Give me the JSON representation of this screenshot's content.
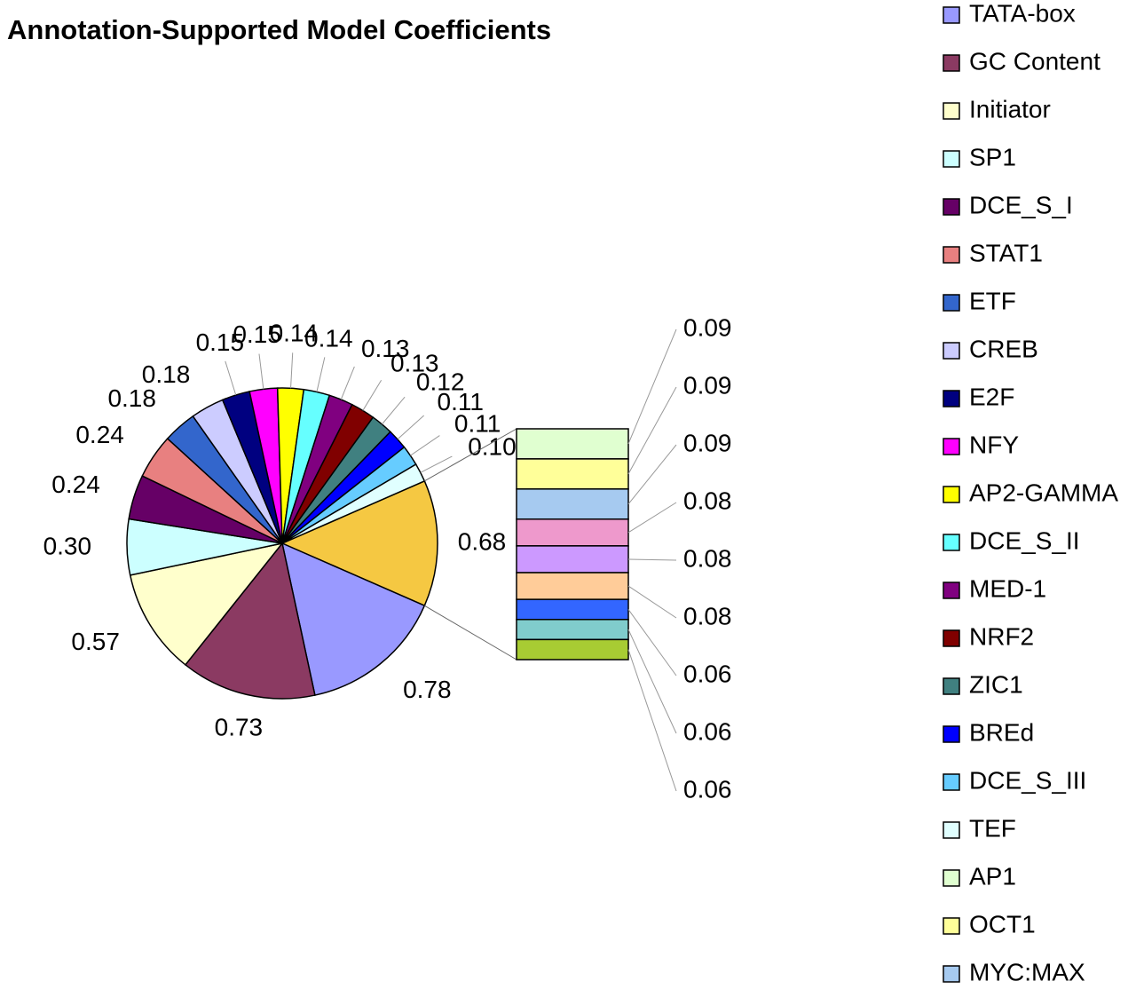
{
  "chart_data": {
    "type": "pie_of_bar",
    "title": "Annotation-Supported Model Coefficients",
    "categories": [
      "TATA-box",
      "GC Content",
      "Initiator",
      "SP1",
      "DCE_S_I",
      "STAT1",
      "ETF",
      "CREB",
      "E2F",
      "NFY",
      "AP2-GAMMA",
      "DCE_S_II",
      "MED-1",
      "NRF2",
      "ZIC1",
      "BREd",
      "DCE_S_III",
      "TEF"
    ],
    "values": [
      0.78,
      0.73,
      0.57,
      0.3,
      0.24,
      0.24,
      0.18,
      0.18,
      0.15,
      0.15,
      0.14,
      0.14,
      0.13,
      0.13,
      0.12,
      0.11,
      0.11,
      0.1
    ],
    "value_labels": [
      "0.78",
      "0.73",
      "0.57",
      "0.30",
      "0.24",
      "0.24",
      "0.18",
      "0.18",
      "0.15",
      "0.15",
      "0.14",
      "0.14",
      "0.13",
      "0.13",
      "0.12",
      "0.11",
      "0.11",
      "0.10"
    ],
    "colors": [
      "#9999ff",
      "#8b3a62",
      "#ffffcc",
      "#ccffff",
      "#660066",
      "#e88080",
      "#3366cc",
      "#ccccff",
      "#000080",
      "#ff00ff",
      "#ffff00",
      "#66ffff",
      "#800080",
      "#800000",
      "#408080",
      "#0000ff",
      "#66ccff",
      "#e0ffff"
    ],
    "other": {
      "value": 0.68,
      "value_label": "0.68",
      "color": "#f5c842"
    },
    "bar": {
      "categories": [
        "AP1",
        "OCT1",
        "MYC:MAX",
        null,
        null,
        null,
        null,
        null,
        null
      ],
      "values": [
        0.09,
        0.09,
        0.09,
        0.08,
        0.08,
        0.08,
        0.06,
        0.06,
        0.06
      ],
      "value_labels": [
        "0.09",
        "0.09",
        "0.09",
        "0.08",
        "0.08",
        "0.08",
        "0.06",
        "0.06",
        "0.06"
      ],
      "colors": [
        "#e0ffd0",
        "#ffff99",
        "#a6caf0",
        "#ee99cc",
        "#cc99ff",
        "#ffcc99",
        "#3366ff",
        "#80cccc",
        "#a8cc33"
      ]
    }
  }
}
